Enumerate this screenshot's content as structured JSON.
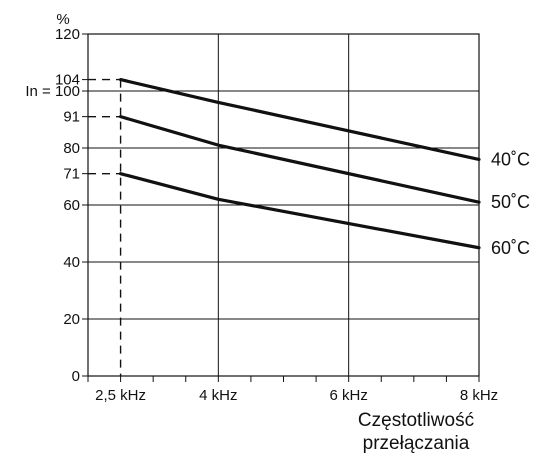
{
  "chart_data": {
    "type": "line",
    "title": "",
    "ylabel": "%",
    "xlabel_lines": [
      "Częstotliwość",
      "przełączania"
    ],
    "xlim": [
      2,
      8
    ],
    "ylim": [
      0,
      120
    ],
    "grid": true,
    "x_ticks": [
      {
        "value": 2.5,
        "label": "2,5 kHz"
      },
      {
        "value": 4,
        "label": "4 kHz"
      },
      {
        "value": 6,
        "label": "6 kHz"
      },
      {
        "value": 8,
        "label": "8 kHz"
      }
    ],
    "x_minor_ticks": [
      2,
      2.5,
      3,
      3.5,
      4,
      4.5,
      5,
      5.5,
      6,
      6.5,
      7,
      7.5,
      8
    ],
    "y_ticks": [
      {
        "value": 0,
        "label": "0"
      },
      {
        "value": 20,
        "label": "20"
      },
      {
        "value": 40,
        "label": "40"
      },
      {
        "value": 60,
        "label": "60"
      },
      {
        "value": 71,
        "label": "71"
      },
      {
        "value": 80,
        "label": "80"
      },
      {
        "value": 91,
        "label": "91"
      },
      {
        "value": 100,
        "label": "In = 100"
      },
      {
        "value": 104,
        "label": "104"
      },
      {
        "value": 120,
        "label": "120"
      }
    ],
    "reference_y": [
      71,
      91,
      104
    ],
    "reference_x": 2.5,
    "series": [
      {
        "name": "40˚C",
        "x": [
          2.5,
          4,
          8
        ],
        "y": [
          104,
          96,
          76
        ]
      },
      {
        "name": "50˚C",
        "x": [
          2.5,
          4,
          8
        ],
        "y": [
          91,
          81,
          61
        ]
      },
      {
        "name": "60˚C",
        "x": [
          2.5,
          4,
          8
        ],
        "y": [
          71,
          62,
          45
        ]
      }
    ]
  }
}
